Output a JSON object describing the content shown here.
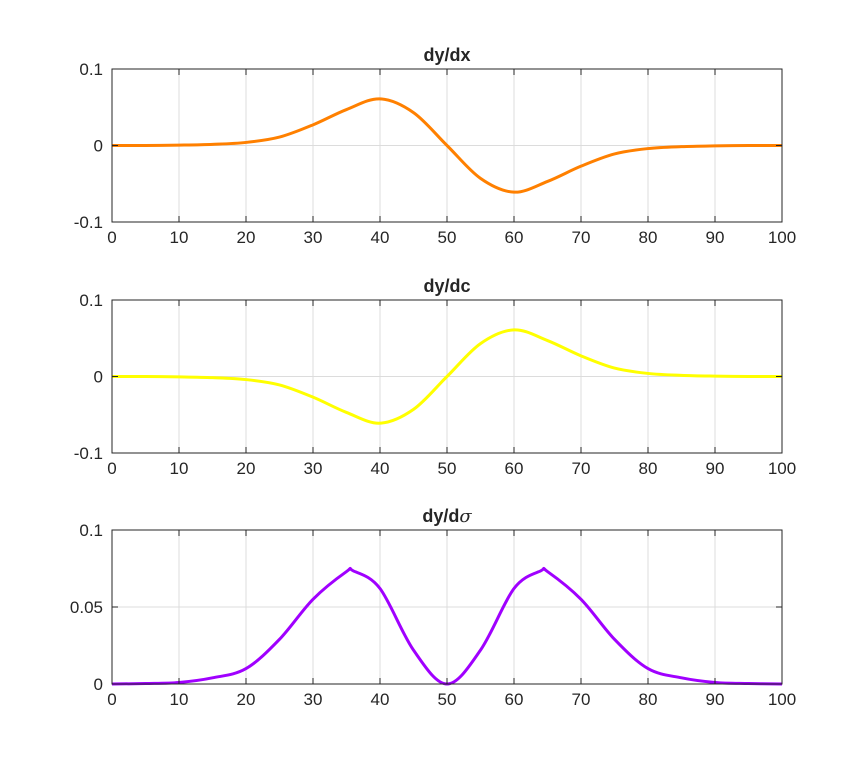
{
  "chart_data": [
    {
      "type": "line",
      "title": "dy/dx",
      "title_suffix": "",
      "xlim": [
        0,
        100
      ],
      "ylim": [
        -0.1,
        0.1
      ],
      "x_ticks": [
        0,
        10,
        20,
        30,
        40,
        50,
        60,
        70,
        80,
        90,
        100
      ],
      "y_ticks": [
        -0.1,
        0,
        0.1
      ],
      "y_tick_labels": [
        "-0.1",
        "0",
        "0.1"
      ],
      "grid": true,
      "color": "#FF8000",
      "series": [
        {
          "x": [
            0,
            5,
            10,
            15,
            20,
            25,
            30,
            35,
            40,
            45,
            50,
            55,
            60,
            65,
            70,
            75,
            80,
            85,
            90,
            95,
            100
          ],
          "values": [
            0.0,
            0.0,
            0.0005,
            0.0015,
            0.004,
            0.011,
            0.027,
            0.047,
            0.061,
            0.043,
            0.0,
            -0.043,
            -0.061,
            -0.047,
            -0.027,
            -0.011,
            -0.004,
            -0.0015,
            -0.0005,
            0.0,
            0.0
          ]
        }
      ]
    },
    {
      "type": "line",
      "title": "dy/dc",
      "title_suffix": "",
      "xlim": [
        0,
        100
      ],
      "ylim": [
        -0.1,
        0.1
      ],
      "x_ticks": [
        0,
        10,
        20,
        30,
        40,
        50,
        60,
        70,
        80,
        90,
        100
      ],
      "y_ticks": [
        -0.1,
        0,
        0.1
      ],
      "y_tick_labels": [
        "-0.1",
        "0",
        "0.1"
      ],
      "grid": true,
      "color": "#FFFF00",
      "series": [
        {
          "x": [
            0,
            5,
            10,
            15,
            20,
            25,
            30,
            35,
            40,
            45,
            50,
            55,
            60,
            65,
            70,
            75,
            80,
            85,
            90,
            95,
            100
          ],
          "values": [
            0.0,
            0.0,
            -0.0005,
            -0.0015,
            -0.004,
            -0.011,
            -0.027,
            -0.047,
            -0.061,
            -0.043,
            0.0,
            0.043,
            0.061,
            0.047,
            0.027,
            0.011,
            0.004,
            0.0015,
            0.0005,
            0.0,
            0.0
          ]
        }
      ]
    },
    {
      "type": "line",
      "title": "dy/d",
      "title_suffix": "σ",
      "xlim": [
        0,
        100
      ],
      "ylim": [
        0,
        0.1
      ],
      "x_ticks": [
        0,
        10,
        20,
        30,
        40,
        50,
        60,
        70,
        80,
        90,
        100
      ],
      "y_ticks": [
        0,
        0.05,
        0.1
      ],
      "y_tick_labels": [
        "0",
        "0.05",
        "0.1"
      ],
      "grid": true,
      "color": "#A000FF",
      "series": [
        {
          "x": [
            0,
            5,
            10,
            15,
            20,
            25,
            30,
            35,
            36,
            40,
            45,
            50,
            55,
            60,
            64,
            65,
            70,
            75,
            80,
            85,
            90,
            95,
            100
          ],
          "values": [
            0.0,
            0.0003,
            0.001,
            0.004,
            0.01,
            0.029,
            0.055,
            0.073,
            0.0735,
            0.062,
            0.022,
            0.0,
            0.022,
            0.062,
            0.0735,
            0.073,
            0.055,
            0.029,
            0.01,
            0.004,
            0.001,
            0.0003,
            0.0
          ]
        }
      ]
    }
  ]
}
